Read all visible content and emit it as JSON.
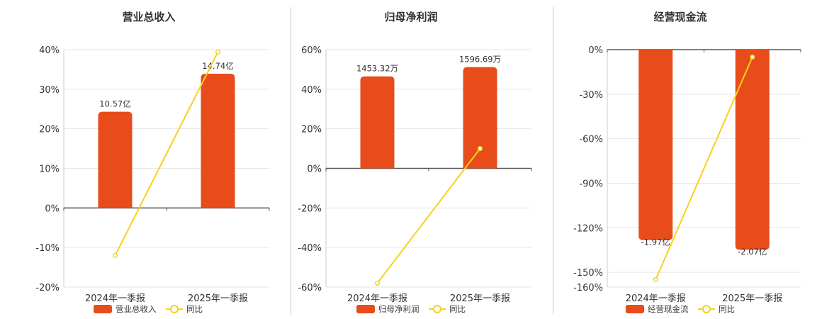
{
  "colors": {
    "bar": "#e84c1b",
    "line": "#f5d21a",
    "grid": "#e6e6e6",
    "axis": "#555555",
    "text": "#333333"
  },
  "chart_data": [
    {
      "type": "bar",
      "title": "营业总收入",
      "categories": [
        "2024年一季报",
        "2025年一季报"
      ],
      "series": [
        {
          "name": "营业总收入",
          "type": "bar",
          "values": [
            24.3,
            33.9
          ],
          "labels": [
            "10.57亿",
            "14.74亿"
          ]
        },
        {
          "name": "同比",
          "type": "line",
          "values": [
            -12,
            39.4
          ]
        }
      ],
      "ylim": [
        -20,
        40
      ],
      "yticks": [
        40,
        30,
        20,
        10,
        0,
        -10,
        -20
      ],
      "tick_labels": [
        "40%",
        "30%",
        "20%",
        "10%",
        "0%",
        "-10%",
        "-20%"
      ],
      "grid": true,
      "legend_position": "bottom"
    },
    {
      "type": "bar",
      "title": "归母净利润",
      "categories": [
        "2024年一季报",
        "2025年一季报"
      ],
      "series": [
        {
          "name": "归母净利润",
          "type": "bar",
          "values": [
            46.5,
            51.2
          ],
          "labels": [
            "1453.32万",
            "1596.69万"
          ]
        },
        {
          "name": "同比",
          "type": "line",
          "values": [
            -58,
            10
          ]
        }
      ],
      "ylim": [
        -60,
        60
      ],
      "yticks": [
        60,
        40,
        20,
        0,
        -20,
        -40,
        -60
      ],
      "tick_labels": [
        "60%",
        "40%",
        "20%",
        "0%",
        "-20%",
        "-40%",
        "-60%"
      ],
      "grid": true,
      "legend_position": "bottom"
    },
    {
      "type": "bar",
      "title": "经营现金流",
      "categories": [
        "2024年一季报",
        "2025年一季报"
      ],
      "series": [
        {
          "name": "经营现金流",
          "type": "bar",
          "values": [
            -128.3,
            -134.8
          ],
          "labels": [
            "-1.97亿",
            "-2.07亿"
          ]
        },
        {
          "name": "同比",
          "type": "line",
          "values": [
            -155,
            -5
          ]
        }
      ],
      "ylim": [
        -160,
        0
      ],
      "yticks": [
        0,
        -30,
        -60,
        -90,
        -120,
        -150,
        -160
      ],
      "tick_labels": [
        "0%",
        "-30%",
        "-60%",
        "-90%",
        "-120%",
        "-150%",
        "-160%"
      ],
      "grid": true,
      "legend_position": "bottom"
    }
  ]
}
